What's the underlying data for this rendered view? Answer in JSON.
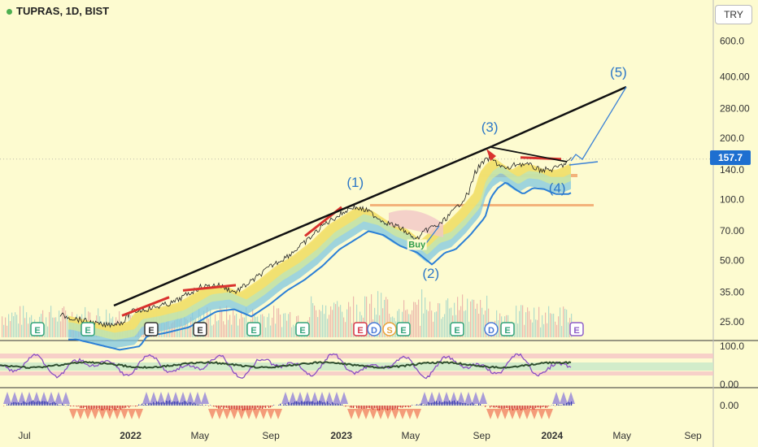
{
  "header": {
    "title": "TUPRAS, 1D, BIST",
    "currency_button": "TRY"
  },
  "price_tag": "157.7",
  "chart_data": {
    "type": "line",
    "title": "TUPRAS, 1D, BIST",
    "ylabel": "TRY",
    "y_scale": "log",
    "ylim": [
      22,
      700
    ],
    "y_ticks": [
      "600.0",
      "400.00",
      "280.00",
      "200.0",
      "140.0",
      "100.0",
      "70.00",
      "50.00",
      "35.00",
      "25.00"
    ],
    "x_ticks": [
      "Jul",
      "2022",
      "May",
      "Sep",
      "2023",
      "May",
      "Sep",
      "2024",
      "May",
      "Sep"
    ],
    "last_price": 157.7,
    "series": [
      {
        "values": [
          {
            "x": "2021-09-01",
            "y": 27
          },
          {
            "x": "2021-11-15",
            "y": 24
          },
          {
            "x": "2021-12-20",
            "y": 25
          },
          {
            "x": "2022-01-01",
            "y": 28
          },
          {
            "x": "2022-02-01",
            "y": 29
          },
          {
            "x": "2022-03-15",
            "y": 31
          },
          {
            "x": "2022-05-01",
            "y": 37
          },
          {
            "x": "2022-06-01",
            "y": 38
          },
          {
            "x": "2022-07-01",
            "y": 35
          },
          {
            "x": "2022-08-01",
            "y": 40
          },
          {
            "x": "2022-09-01",
            "y": 47
          },
          {
            "x": "2022-10-01",
            "y": 53
          },
          {
            "x": "2022-11-01",
            "y": 62
          },
          {
            "x": "2022-12-01",
            "y": 75
          },
          {
            "x": "2023-01-01",
            "y": 85
          },
          {
            "x": "2023-01-20",
            "y": 92
          },
          {
            "x": "2023-02-15",
            "y": 88
          },
          {
            "x": "2023-03-15",
            "y": 78
          },
          {
            "x": "2023-04-15",
            "y": 72
          },
          {
            "x": "2023-05-10",
            "y": 63
          },
          {
            "x": "2023-06-01",
            "y": 72
          },
          {
            "x": "2023-06-20",
            "y": 75
          },
          {
            "x": "2023-07-15",
            "y": 88
          },
          {
            "x": "2023-08-10",
            "y": 108
          },
          {
            "x": "2023-08-20",
            "y": 135
          },
          {
            "x": "2023-09-01",
            "y": 150
          },
          {
            "x": "2023-09-15",
            "y": 160
          },
          {
            "x": "2023-10-01",
            "y": 148
          },
          {
            "x": "2023-10-15",
            "y": 140
          },
          {
            "x": "2023-11-01",
            "y": 150
          },
          {
            "x": "2023-11-20",
            "y": 148
          },
          {
            "x": "2023-12-10",
            "y": 140
          },
          {
            "x": "2024-01-01",
            "y": 140
          },
          {
            "x": "2024-01-20",
            "y": 148
          },
          {
            "x": "2024-02-05",
            "y": 158
          }
        ]
      }
    ],
    "volume_event_labels": [
      "E",
      "E",
      "E",
      "E",
      "E",
      "E",
      "E",
      "D",
      "S",
      "E",
      "E",
      "D",
      "E",
      "E"
    ],
    "wave_labels": [
      {
        "text": "(1)",
        "x": "2023-01-25",
        "y": 115
      },
      {
        "text": "(2)",
        "x": "2023-06-05",
        "y": 41
      },
      {
        "text": "(3)",
        "x": "2023-09-15",
        "y": 215
      },
      {
        "text": "(4)",
        "x": "2024-01-10",
        "y": 108
      },
      {
        "text": "(5)",
        "x": "2024-04-25",
        "y": 400
      }
    ],
    "buy_label": "Buy",
    "oscillator_ticks": [
      "100.0",
      "0.00"
    ],
    "histogram_ticks": [
      "0.00"
    ]
  }
}
